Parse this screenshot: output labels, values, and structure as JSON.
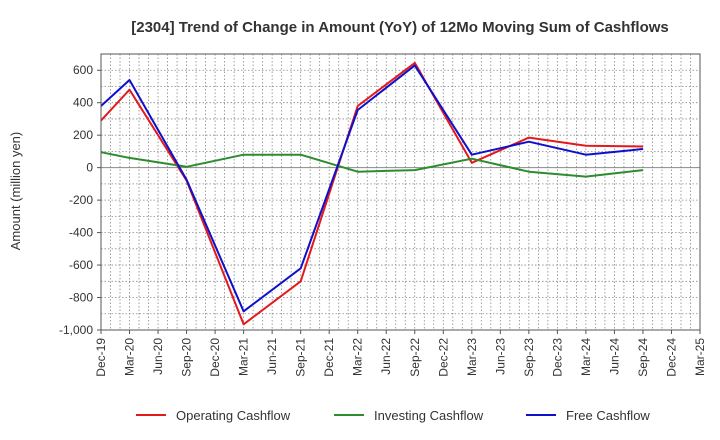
{
  "chart_data": {
    "type": "line",
    "title": "[2304]  Trend of Change in Amount (YoY) of 12Mo Moving Sum of Cashflows",
    "xlabel": "",
    "ylabel": "Amount (million yen)",
    "ylim": [
      -1000,
      700
    ],
    "yticks": [
      -1000,
      -800,
      -600,
      -400,
      -200,
      0,
      200,
      400,
      600
    ],
    "ytick_labels": [
      "-1,000",
      "-800",
      "-600",
      "-400",
      "-200",
      "0",
      "200",
      "400",
      "600"
    ],
    "categories": [
      "Dec-19",
      "Mar-20",
      "Jun-20",
      "Sep-20",
      "Dec-20",
      "Mar-21",
      "Jun-21",
      "Sep-21",
      "Dec-21",
      "Mar-22",
      "Jun-22",
      "Sep-22",
      "Dec-22",
      "Mar-23",
      "Jun-23",
      "Sep-23",
      "Dec-23",
      "Mar-24",
      "Jun-24",
      "Sep-24",
      "Dec-24",
      "Mar-25"
    ],
    "grid": true,
    "legend_position": "bottom",
    "series": [
      {
        "name": "Operating Cashflow",
        "color": "#e31a1c",
        "values": [
          290,
          480,
          null,
          -80,
          null,
          -965,
          null,
          -700,
          null,
          380,
          null,
          645,
          null,
          30,
          null,
          185,
          null,
          135,
          null,
          130,
          null,
          null
        ]
      },
      {
        "name": "Investing Cashflow",
        "color": "#2e8b2e",
        "values": [
          95,
          60,
          null,
          5,
          null,
          80,
          null,
          80,
          null,
          -25,
          null,
          -15,
          null,
          55,
          null,
          -25,
          null,
          -55,
          null,
          -15,
          null,
          null
        ]
      },
      {
        "name": "Free Cashflow",
        "color": "#1010cc",
        "values": [
          380,
          540,
          null,
          -75,
          null,
          -885,
          null,
          -620,
          null,
          355,
          null,
          630,
          null,
          80,
          null,
          160,
          null,
          80,
          null,
          115,
          null,
          null
        ]
      }
    ]
  }
}
